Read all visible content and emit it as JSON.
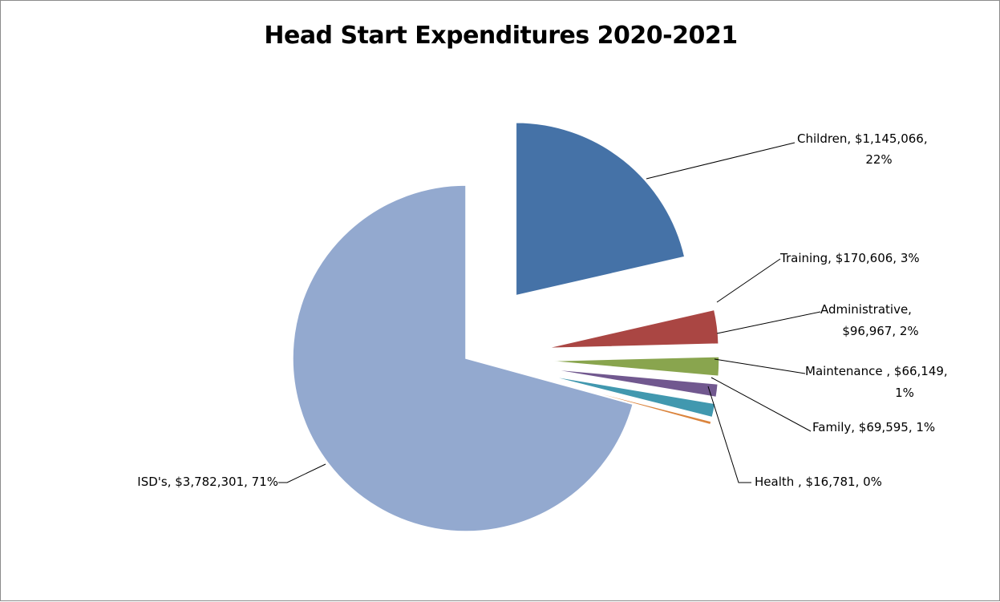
{
  "chart_data": {
    "type": "pie",
    "title": "Head Start Expenditures 2020-2021",
    "slices": [
      {
        "name": "Children",
        "value": 1145066,
        "label_lines": [
          "Children, $1,145,066,",
          "22%"
        ],
        "color": "#4572a7",
        "exploded": true
      },
      {
        "name": "Training",
        "value": 170606,
        "label_lines": [
          "Training, $170,606, 3%"
        ],
        "color": "#aa4643",
        "exploded": true
      },
      {
        "name": "Administrative",
        "value": 96967,
        "label_lines": [
          "Administrative,",
          "$96,967, 2%"
        ],
        "color": "#89a54e",
        "exploded": true
      },
      {
        "name": "Maintenance",
        "value": 66149,
        "label_lines": [
          "Maintenance , $66,149,",
          "1%"
        ],
        "color": "#71588f",
        "exploded": true
      },
      {
        "name": "Family",
        "value": 69595,
        "label_lines": [
          "Family, $69,595, 1%"
        ],
        "color": "#4198af",
        "exploded": true
      },
      {
        "name": "Health",
        "value": 16781,
        "label_lines": [
          "Health , $16,781, 0%"
        ],
        "color": "#db843d",
        "exploded": true
      },
      {
        "name": "ISD's",
        "value": 3782301,
        "label_lines": [
          "ISD's, $3,782,301, 71%"
        ],
        "color": "#93a9cf",
        "exploded": false
      }
    ]
  }
}
